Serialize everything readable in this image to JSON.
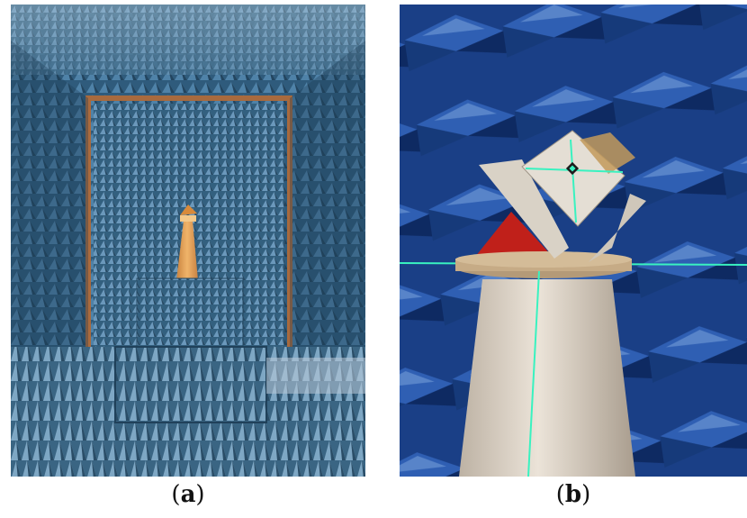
{
  "figure": {
    "panels": [
      {
        "label": "a",
        "open": "(",
        "close": ")"
      },
      {
        "label": "b",
        "open": "(",
        "close": ")"
      }
    ]
  },
  "colors": {
    "absorber_blue": "#3e6f93",
    "absorber_light": "#9fc0d8",
    "pedestal_tan": "#e3a45a",
    "frame_copper": "#a86a3e",
    "laser_green": "#39f2c0",
    "absorber_red": "#c0201a",
    "dark_blue": "#0b2a6b"
  }
}
